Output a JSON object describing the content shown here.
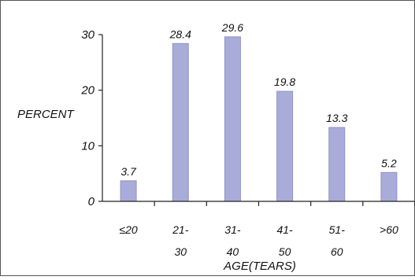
{
  "colors": {
    "bar": "#a9acd9",
    "bar_edge": "#8f93c6",
    "axis": "#222222",
    "frame": "#555555"
  },
  "chart_data": {
    "type": "bar",
    "title": "",
    "xlabel": "AGE(TEARS)",
    "ylabel": "PERCENT",
    "ylim": [
      0,
      30
    ],
    "yticks": [
      0,
      10,
      20,
      30
    ],
    "grid": false,
    "categories": [
      [
        "≤20"
      ],
      [
        "21-",
        "30"
      ],
      [
        "31-",
        "40"
      ],
      [
        "41-",
        "50"
      ],
      [
        "51-",
        "60"
      ],
      [
        ">60"
      ]
    ],
    "values": [
      3.7,
      28.4,
      29.6,
      19.8,
      13.3,
      5.2
    ],
    "data_labels": [
      "3.7",
      "28.4",
      "29.6",
      "19.8",
      "13.3",
      "5.2"
    ]
  }
}
